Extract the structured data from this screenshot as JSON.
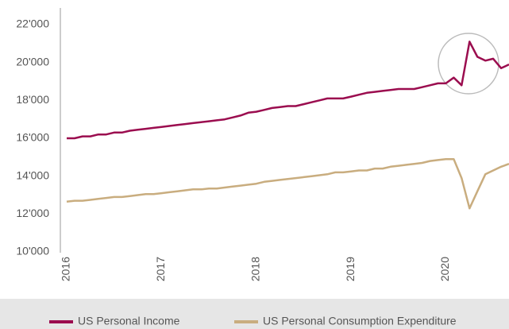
{
  "chart_data": {
    "type": "line",
    "categories": [
      "2016",
      null,
      null,
      null,
      null,
      null,
      null,
      null,
      null,
      null,
      null,
      null,
      "2017",
      null,
      null,
      null,
      null,
      null,
      null,
      null,
      null,
      null,
      null,
      null,
      "2018",
      null,
      null,
      null,
      null,
      null,
      null,
      null,
      null,
      null,
      null,
      null,
      "2019",
      null,
      null,
      null,
      null,
      null,
      null,
      null,
      null,
      null,
      null,
      null,
      "2020",
      null,
      null,
      null,
      null,
      null,
      null,
      null,
      null
    ],
    "series": [
      {
        "name": "US Personal Income",
        "color": "#9b0d4f",
        "values": [
          16000,
          16000,
          16100,
          16100,
          16200,
          16200,
          16300,
          16300,
          16400,
          16450,
          16500,
          16550,
          16600,
          16650,
          16700,
          16750,
          16800,
          16850,
          16900,
          16950,
          17000,
          17100,
          17200,
          17350,
          17400,
          17500,
          17600,
          17650,
          17700,
          17700,
          17800,
          17900,
          18000,
          18100,
          18100,
          18100,
          18200,
          18300,
          18400,
          18450,
          18500,
          18550,
          18600,
          18600,
          18600,
          18700,
          18800,
          18900,
          18900,
          19200,
          18800,
          21100,
          20300,
          20100,
          20200,
          19700,
          19900
        ]
      },
      {
        "name": "US Personal Consumption Expenditure",
        "color": "#c9ad7f",
        "values": [
          12650,
          12700,
          12700,
          12750,
          12800,
          12850,
          12900,
          12900,
          12950,
          13000,
          13050,
          13050,
          13100,
          13150,
          13200,
          13250,
          13300,
          13300,
          13350,
          13350,
          13400,
          13450,
          13500,
          13550,
          13600,
          13700,
          13750,
          13800,
          13850,
          13900,
          13950,
          14000,
          14050,
          14100,
          14200,
          14200,
          14250,
          14300,
          14300,
          14400,
          14400,
          14500,
          14550,
          14600,
          14650,
          14700,
          14800,
          14850,
          14900,
          14900,
          13900,
          12300,
          13200,
          14100,
          14300,
          14500,
          14650
        ]
      }
    ],
    "ylim": [
      10000,
      22000
    ],
    "yticks": [
      {
        "value": 10000,
        "label": "10'000"
      },
      {
        "value": 12000,
        "label": "12'000"
      },
      {
        "value": 14000,
        "label": "14'000"
      },
      {
        "value": 16000,
        "label": "16'000"
      },
      {
        "value": 18000,
        "label": "18'000"
      },
      {
        "value": 20000,
        "label": "20'000"
      },
      {
        "value": 22000,
        "label": "22'000"
      }
    ],
    "grid": false
  }
}
